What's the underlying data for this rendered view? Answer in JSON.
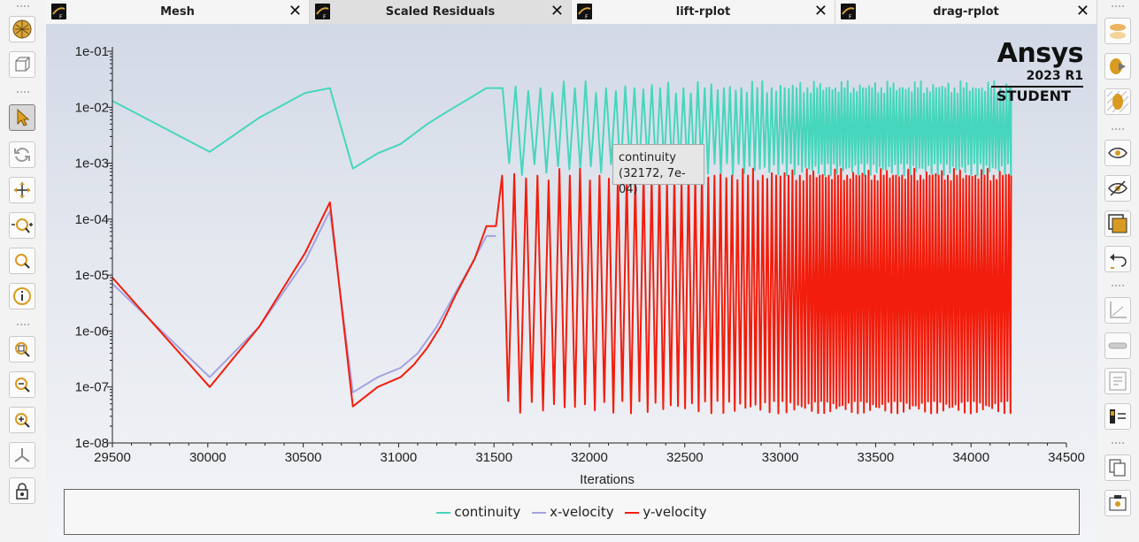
{
  "tabs": [
    {
      "label": "Mesh",
      "selected": false
    },
    {
      "label": "Scaled Residuals",
      "selected": true
    },
    {
      "label": "lift-rplot",
      "selected": false
    },
    {
      "label": "drag-rplot",
      "selected": false
    }
  ],
  "tab_close_glyph": "✕",
  "brand": {
    "name": "Ansys",
    "version": "2023 R1",
    "edition": "STUDENT"
  },
  "tooltip": {
    "series": "continuity",
    "point": "(32172, 7e-04)"
  },
  "left_toolbar_icons": [
    "fit-mesh-icon",
    "view-cube-icon",
    "select-pointer-icon",
    "rotate-icon",
    "pan-icon",
    "zoom-in-out-icon",
    "zoom-icon",
    "probe-info-icon",
    "zoom-to-area-icon",
    "zoom-out-icon",
    "zoom-in-icon",
    "axes-orientation-icon",
    "lock-icon"
  ],
  "right_toolbar_icons": [
    "shadow-plane-icon",
    "outline-shape-icon",
    "hatched-shape-icon",
    "show-eye-icon",
    "hide-eye-icon",
    "window-icon",
    "undo-view-icon",
    "axis-icon",
    "slider-icon",
    "text-panel-icon",
    "legend-panel-icon",
    "copy-icon",
    "screenshot-icon"
  ],
  "chart_data": {
    "type": "line",
    "xlabel": "Iterations",
    "ylabel": "",
    "xlim": [
      29500,
      34500
    ],
    "ylim_log10": [
      -8,
      -1
    ],
    "log_y": true,
    "x_ticks": [
      "29500",
      "30000",
      "30500",
      "31000",
      "31500",
      "32000",
      "32500",
      "33000",
      "33500",
      "34000",
      "34500"
    ],
    "y_ticks": [
      "1e-01",
      "1e-02",
      "1e-03",
      "1e-04",
      "1e-05",
      "1e-06",
      "1e-07",
      "1e-08"
    ],
    "legend_position": "bottom",
    "series": [
      {
        "name": "continuity",
        "color": "#46d6bd",
        "points": [
          [
            29500,
            0.013
          ],
          [
            30010,
            0.0016
          ],
          [
            30270,
            0.0065
          ],
          [
            30510,
            0.018
          ],
          [
            30640,
            0.022
          ],
          [
            30760,
            0.0008
          ],
          [
            30890,
            0.0015
          ],
          [
            31010,
            0.0022
          ],
          [
            31150,
            0.005
          ],
          [
            31270,
            0.009
          ],
          [
            31380,
            0.015
          ],
          [
            31460,
            0.022
          ],
          [
            31510,
            0.022
          ]
        ],
        "oscillation": {
          "x_start": 31510,
          "x_end": 34210,
          "period_start": 70,
          "period_end": 16,
          "high": 0.022,
          "low": 0.0008
        }
      },
      {
        "name": "x-velocity",
        "color": "#a3a3e0",
        "points": [
          [
            29500,
            7e-06
          ],
          [
            30010,
            1.5e-07
          ],
          [
            30270,
            1.2e-06
          ],
          [
            30510,
            1.8e-05
          ],
          [
            30640,
            0.00014
          ],
          [
            30760,
            8e-08
          ],
          [
            30890,
            1.5e-07
          ],
          [
            31010,
            2.2e-07
          ],
          [
            31100,
            4e-07
          ],
          [
            31200,
            1.2e-06
          ],
          [
            31300,
            5e-06
          ],
          [
            31400,
            2e-05
          ],
          [
            31460,
            5e-05
          ],
          [
            31510,
            5e-05
          ]
        ]
      },
      {
        "name": "y-velocity",
        "color": "#f21d0c",
        "points": [
          [
            29500,
            9e-06
          ],
          [
            30010,
            1e-07
          ],
          [
            30270,
            1.2e-06
          ],
          [
            30510,
            2.5e-05
          ],
          [
            30640,
            0.0002
          ],
          [
            30760,
            4.5e-08
          ],
          [
            30890,
            1e-07
          ],
          [
            31010,
            1.5e-07
          ],
          [
            31080,
            2.5e-07
          ],
          [
            31150,
            5e-07
          ],
          [
            31220,
            1.2e-06
          ],
          [
            31300,
            4.5e-06
          ],
          [
            31400,
            2e-05
          ],
          [
            31460,
            7.5e-05
          ],
          [
            31510,
            7.5e-05
          ]
        ],
        "oscillation": {
          "x_start": 31510,
          "x_end": 34210,
          "period_start": 65,
          "period_end": 16,
          "high": 0.0006,
          "low": 4.5e-08
        }
      }
    ]
  }
}
